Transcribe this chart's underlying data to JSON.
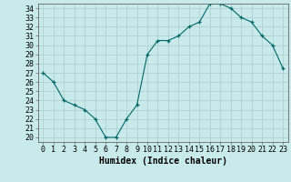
{
  "x": [
    0,
    1,
    2,
    3,
    4,
    5,
    6,
    7,
    8,
    9,
    10,
    11,
    12,
    13,
    14,
    15,
    16,
    17,
    18,
    19,
    20,
    21,
    22,
    23
  ],
  "y": [
    27,
    26,
    24,
    23.5,
    23,
    22,
    20,
    20,
    22,
    23.5,
    29,
    30.5,
    30.5,
    31,
    32,
    32.5,
    34.5,
    34.5,
    34,
    33,
    32.5,
    31,
    30,
    27.5
  ],
  "line_color": "#006666",
  "marker_color": "#006666",
  "bg_color": "#c8eaea",
  "grid_color": "#aacccc",
  "xlabel": "Humidex (Indice chaleur)",
  "ylim": [
    19.5,
    34.5
  ],
  "xlim": [
    -0.5,
    23.5
  ],
  "yticks": [
    20,
    21,
    22,
    23,
    24,
    25,
    26,
    27,
    28,
    29,
    30,
    31,
    32,
    33,
    34
  ],
  "xticks": [
    0,
    1,
    2,
    3,
    4,
    5,
    6,
    7,
    8,
    9,
    10,
    11,
    12,
    13,
    14,
    15,
    16,
    17,
    18,
    19,
    20,
    21,
    22,
    23
  ],
  "xtick_labels": [
    "0",
    "1",
    "2",
    "3",
    "4",
    "5",
    "6",
    "7",
    "8",
    "9",
    "10",
    "11",
    "12",
    "13",
    "14",
    "15",
    "16",
    "17",
    "18",
    "19",
    "20",
    "21",
    "22",
    "23"
  ],
  "font_size": 6,
  "xlabel_fontsize": 7
}
